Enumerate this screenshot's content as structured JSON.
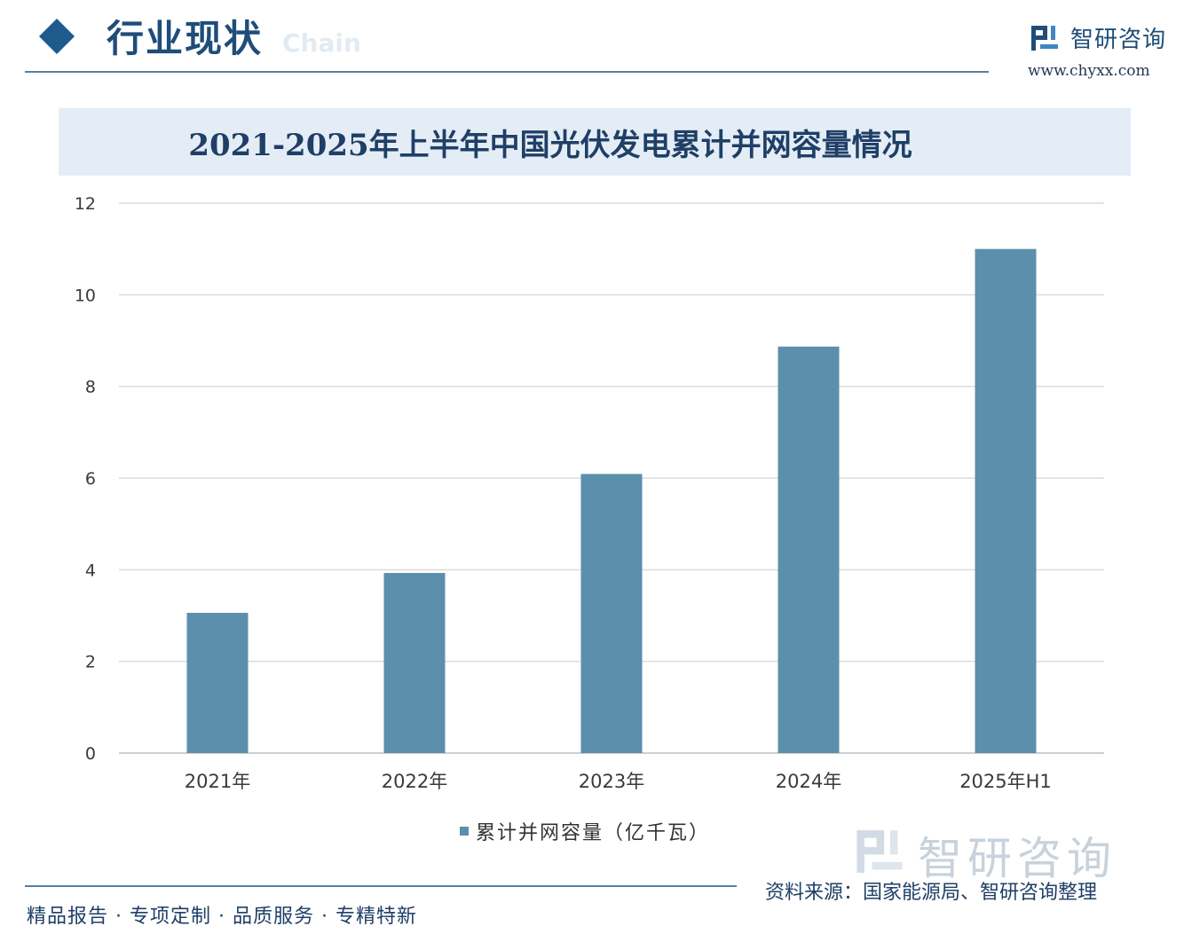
{
  "header": {
    "section_title": "行业现状",
    "ghost_subtitle": "Chain",
    "brand_name": "智研咨询",
    "brand_url": "www.chyxx.com"
  },
  "chart_data": {
    "type": "bar",
    "title": "2021-2025年上半年中国光伏发电累计并网容量情况",
    "categories": [
      "2021年",
      "2022年",
      "2023年",
      "2024年",
      "2025年H1"
    ],
    "series": [
      {
        "name": "累计并网容量（亿千瓦）",
        "values": [
          3.06,
          3.93,
          6.09,
          8.87,
          11.0
        ],
        "color": "#5b8fac"
      }
    ],
    "xlabel": "",
    "ylabel": "",
    "ylim": [
      0,
      12
    ],
    "yticks": [
      "0",
      "2",
      "4",
      "6",
      "8",
      "10",
      "12"
    ],
    "grid": true,
    "legend_position": "bottom"
  },
  "watermark": {
    "text": "智研咨询"
  },
  "footer": {
    "tagline": "精品报告 · 专项定制 · 品质服务 · 专精特新",
    "source": "资料来源：国家能源局、智研咨询整理"
  },
  "colors": {
    "accent": "#1f4d7a",
    "bar": "#5b8fac",
    "title_band": "#e4edf6"
  }
}
